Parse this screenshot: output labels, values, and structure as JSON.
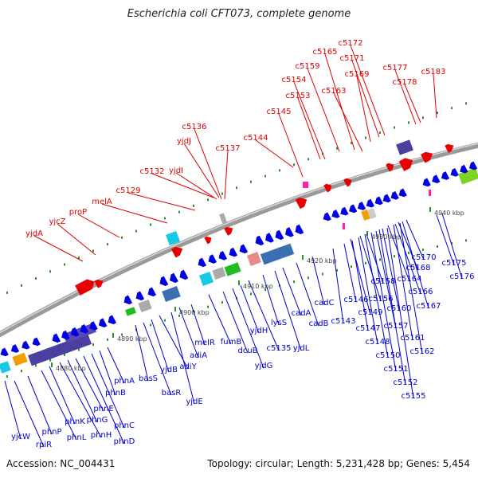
{
  "title": "Escherichia coli CFT073, complete genome",
  "accession_label": "Accession: NC_004431",
  "stats_label": "Topology: circular; Length: 5,231,428 bp; Genes: 5,454",
  "colors": {
    "forward": "#e80000",
    "reverse": "#0000e6",
    "backbone": "#8a8a8a"
  },
  "kbp_ticks": [
    "4880 kbp",
    "4890 kbp",
    "4900 kbp",
    "4910 kbp",
    "4920 kbp",
    "4930 kbp",
    "4940 kbp"
  ],
  "forward_genes": [
    "yjdA",
    "yjcZ",
    "proP",
    "melA",
    "c5129",
    "c5132",
    "yjdI",
    "yjdJ",
    "c5136",
    "c5137",
    "c5144",
    "c5145",
    "c5153",
    "c5154",
    "c5159",
    "c5165",
    "c5163",
    "c5169",
    "c5171",
    "c5172",
    "c5177",
    "c5178",
    "c5183"
  ],
  "reverse_genes": [
    "yjcW",
    "rpiR",
    "phnP",
    "phnL",
    "phnK",
    "phnH",
    "phnG",
    "phnE",
    "phnD",
    "phnC",
    "phnB",
    "phnA",
    "basS",
    "basR",
    "yjdB",
    "adiY",
    "yjdE",
    "adiA",
    "melR",
    "fumB",
    "dcuB",
    "yjdG",
    "yjdH",
    "c5135",
    "lysS",
    "yjdL",
    "cadA",
    "cadB",
    "cadC",
    "c5143",
    "c5146",
    "c5147",
    "c5148",
    "c5149",
    "c5150",
    "c5151",
    "c5152",
    "c5155",
    "c5156",
    "c5157",
    "c5158",
    "c5160",
    "c5161",
    "c5162",
    "c5164",
    "c5166",
    "c5167",
    "c5168",
    "c5170",
    "c5175",
    "c5176"
  ]
}
